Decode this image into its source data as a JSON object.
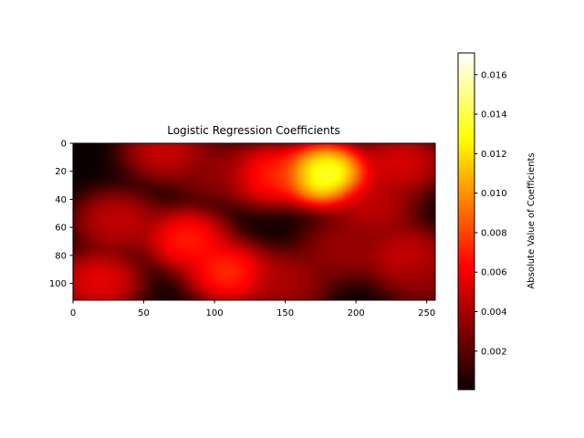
{
  "chart_data": {
    "type": "heatmap",
    "title": "Logistic Regression Coefficients",
    "colormap": "hot",
    "xlim": [
      0,
      256
    ],
    "ylim": [
      112,
      0
    ],
    "x_ticks": [
      0,
      50,
      100,
      150,
      200,
      250
    ],
    "y_ticks": [
      0,
      20,
      40,
      60,
      80,
      100
    ],
    "colorbar": {
      "label": "Absolute Value of Coefficients",
      "range": [
        5e-05,
        0.0171
      ],
      "ticks": [
        "0.002",
        "0.004",
        "0.006",
        "0.008",
        "0.010",
        "0.012",
        "0.014",
        "0.016"
      ],
      "tick_values": [
        0.002,
        0.004,
        0.006,
        0.008,
        0.01,
        0.012,
        0.014,
        0.016
      ]
    },
    "grid": false,
    "blobs": [
      {
        "x": 178,
        "y": 22,
        "value": 0.017
      },
      {
        "x": 137,
        "y": 22,
        "value": 0.0085
      },
      {
        "x": 80,
        "y": 68,
        "value": 0.0085
      },
      {
        "x": 110,
        "y": 92,
        "value": 0.009
      },
      {
        "x": 18,
        "y": 98,
        "value": 0.007
      },
      {
        "x": 30,
        "y": 55,
        "value": 0.0058
      },
      {
        "x": 65,
        "y": 5,
        "value": 0.006
      },
      {
        "x": 100,
        "y": 20,
        "value": 0.004
      },
      {
        "x": 232,
        "y": 14,
        "value": 0.0065
      },
      {
        "x": 235,
        "y": 80,
        "value": 0.006
      },
      {
        "x": 212,
        "y": 45,
        "value": 0.0055
      },
      {
        "x": 250,
        "y": 95,
        "value": 0.004
      },
      {
        "x": 150,
        "y": 98,
        "value": 0.005
      },
      {
        "x": 190,
        "y": 75,
        "value": 0.0045
      }
    ]
  }
}
